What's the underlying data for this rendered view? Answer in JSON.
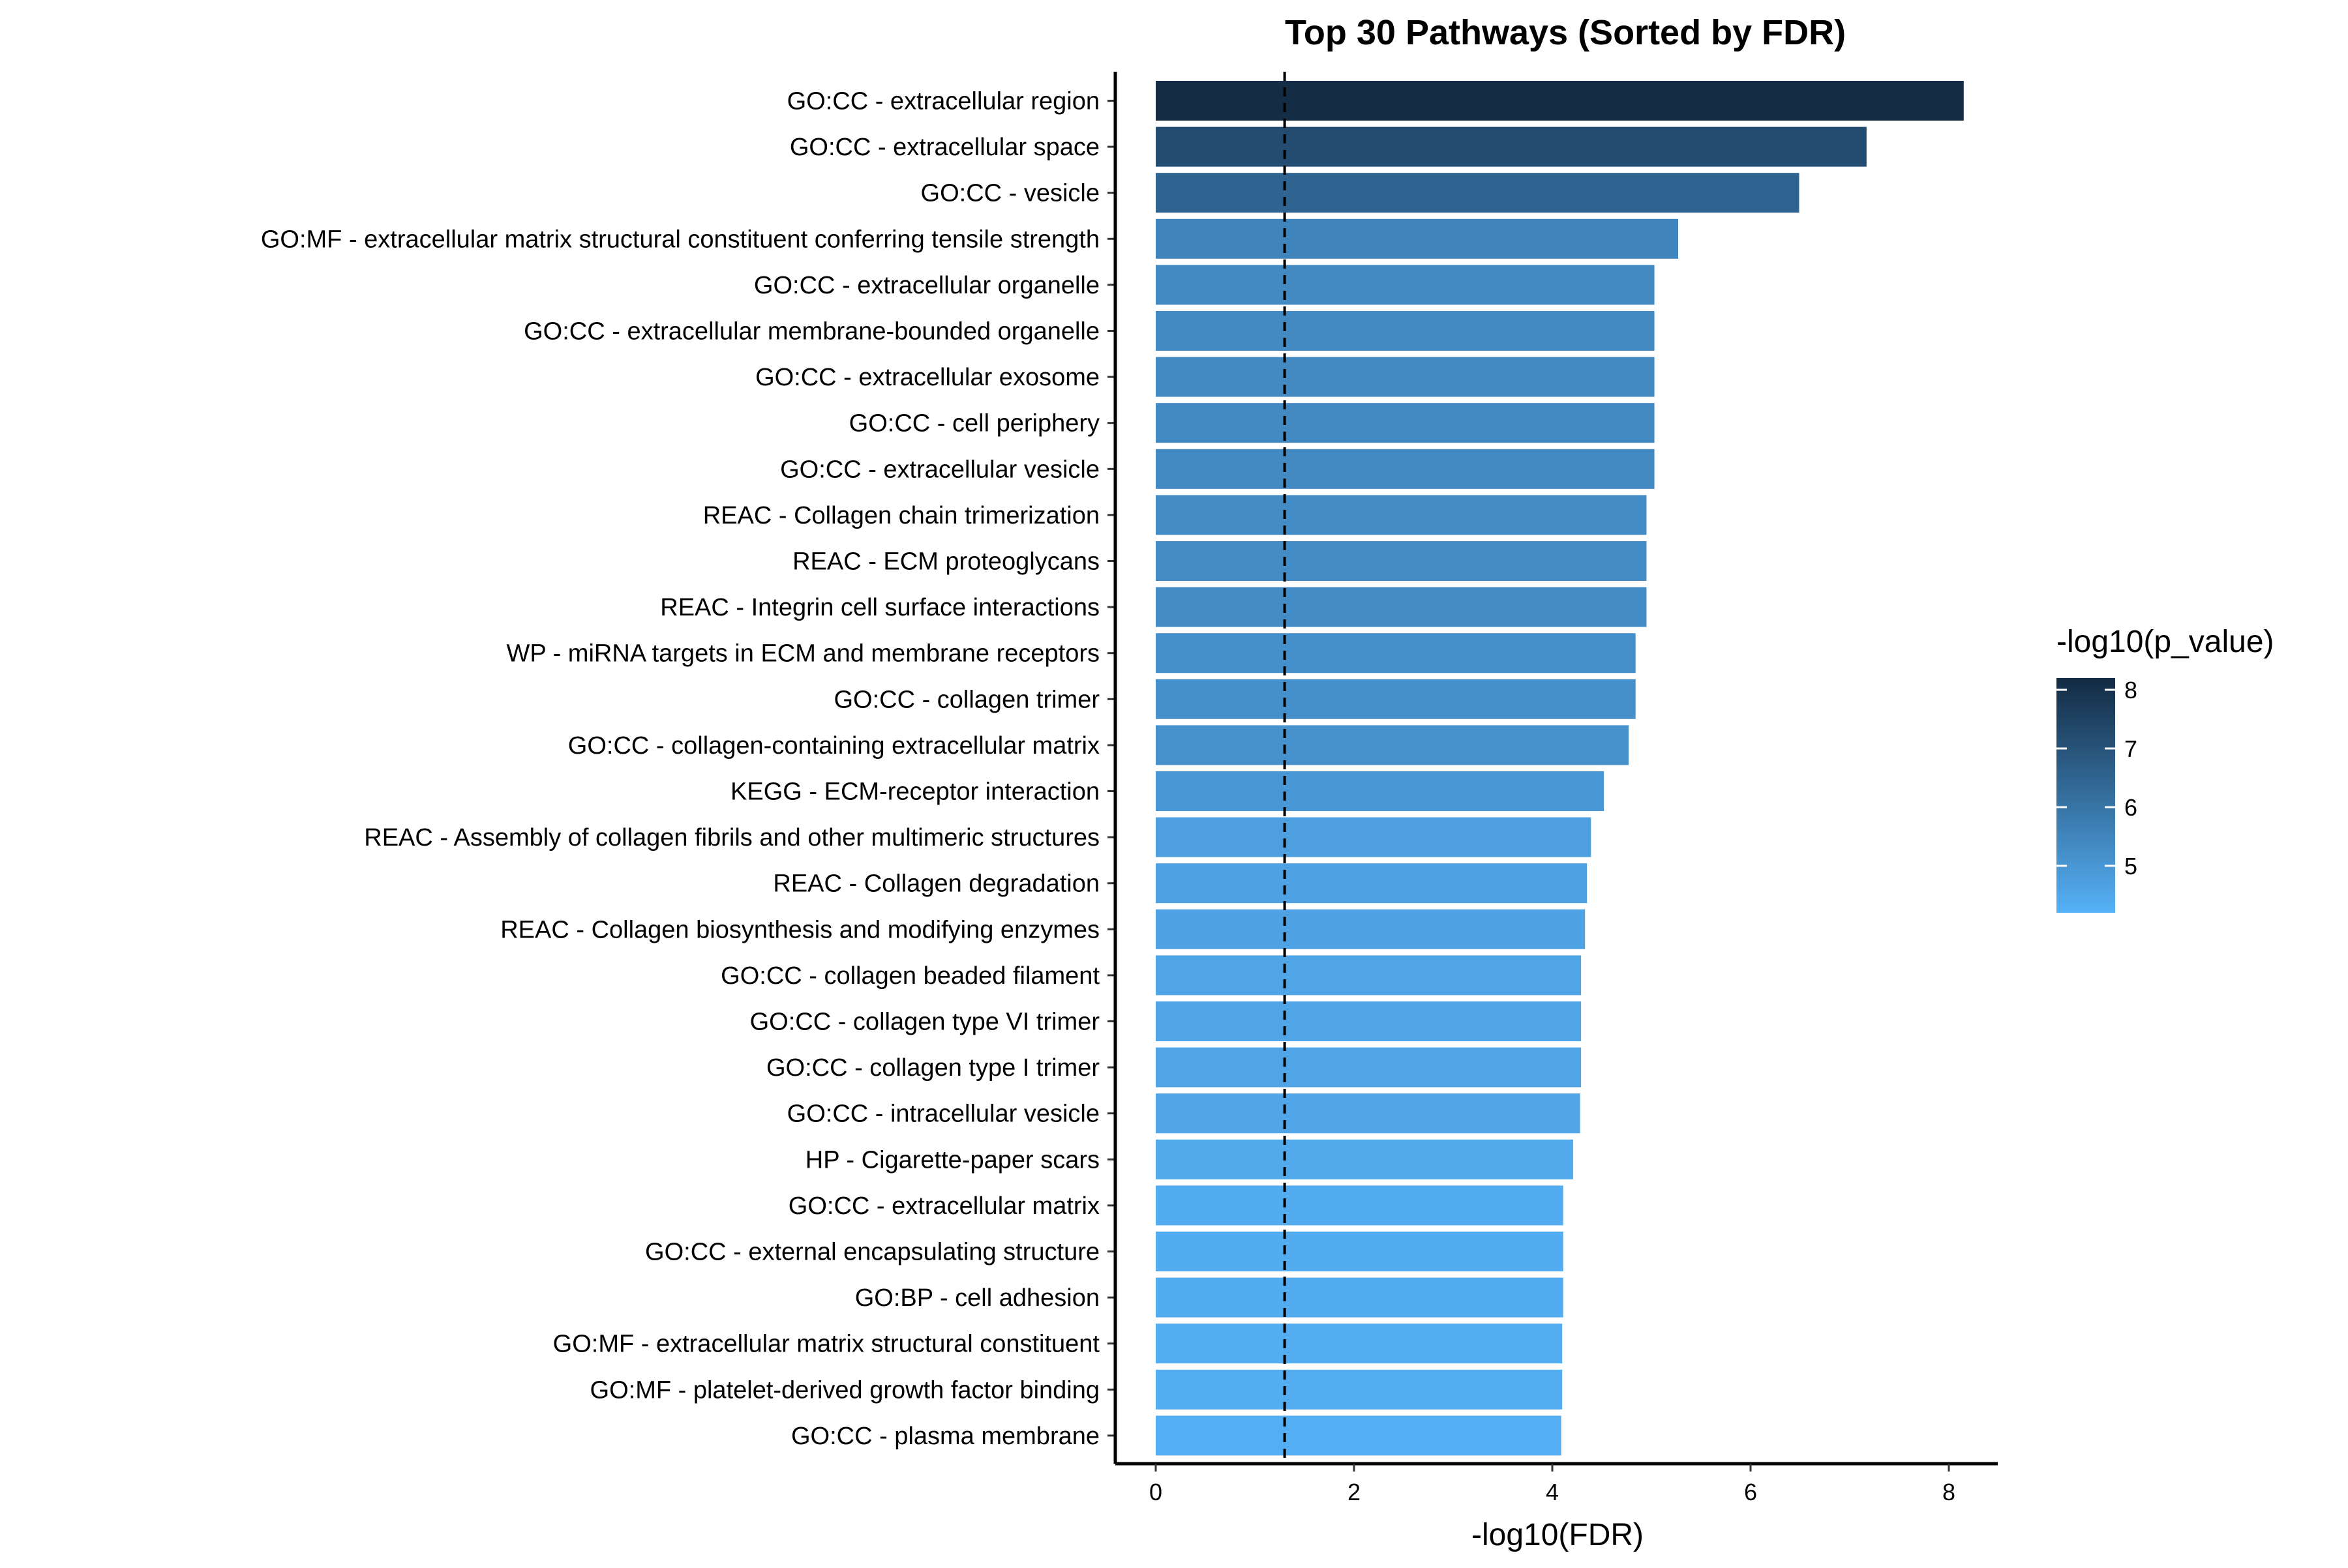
{
  "chart_data": {
    "type": "bar",
    "orientation": "horizontal",
    "title": "Top 30 Pathways (Sorted by FDR)",
    "xlabel": "-log10(FDR)",
    "ylabel": "",
    "xlim": [
      0,
      8.5
    ],
    "xticks": [
      0,
      2,
      4,
      6,
      8
    ],
    "reference_line": {
      "x": 1.3,
      "style": "dashed"
    },
    "grid": false,
    "legend": {
      "title": "-log10(p_value)",
      "type": "colorbar",
      "placement": "right",
      "range": [
        4.2,
        8.2
      ],
      "ticks": [
        5,
        6,
        7,
        8
      ],
      "low_color": "#56B1F7",
      "high_color": "#132B43"
    },
    "categories": [
      "GO:CC - extracellular region",
      "GO:CC - extracellular space",
      "GO:CC - vesicle",
      "GO:MF - extracellular matrix structural constituent conferring tensile strength",
      "GO:CC - extracellular organelle",
      "GO:CC - extracellular membrane-bounded organelle",
      "GO:CC - extracellular exosome",
      "GO:CC - cell periphery",
      "GO:CC - extracellular vesicle",
      "REAC - Collagen chain trimerization",
      "REAC - ECM proteoglycans",
      "REAC - Integrin cell surface interactions",
      "WP - miRNA targets in ECM and membrane receptors",
      "GO:CC - collagen trimer",
      "GO:CC - collagen-containing extracellular matrix",
      "KEGG - ECM-receptor interaction",
      "REAC - Assembly of collagen fibrils and other multimeric structures",
      "REAC - Collagen degradation",
      "REAC - Collagen biosynthesis and modifying enzymes",
      "GO:CC - collagen beaded filament",
      "GO:CC - collagen type VI trimer",
      "GO:CC - collagen type I trimer",
      "GO:CC - intracellular vesicle",
      "HP - Cigarette-paper scars",
      "GO:CC - extracellular matrix",
      "GO:CC - external encapsulating structure",
      "GO:BP - cell adhesion",
      "GO:MF - extracellular matrix structural constituent",
      "GO:MF - platelet-derived growth factor binding",
      "GO:CC - plasma membrane"
    ],
    "values": [
      8.15,
      7.17,
      6.49,
      5.27,
      5.03,
      5.03,
      5.03,
      5.03,
      5.03,
      4.95,
      4.95,
      4.95,
      4.84,
      4.84,
      4.77,
      4.52,
      4.39,
      4.35,
      4.33,
      4.29,
      4.29,
      4.29,
      4.28,
      4.21,
      4.11,
      4.11,
      4.11,
      4.1,
      4.1,
      4.09
    ],
    "color_values": [
      8.15,
      7.2,
      6.5,
      5.55,
      5.35,
      5.35,
      5.35,
      5.35,
      5.35,
      5.3,
      5.3,
      5.3,
      5.2,
      5.2,
      5.15,
      4.95,
      4.75,
      4.65,
      4.62,
      4.55,
      4.55,
      4.55,
      4.53,
      4.45,
      4.35,
      4.35,
      4.35,
      4.33,
      4.33,
      4.3
    ]
  }
}
